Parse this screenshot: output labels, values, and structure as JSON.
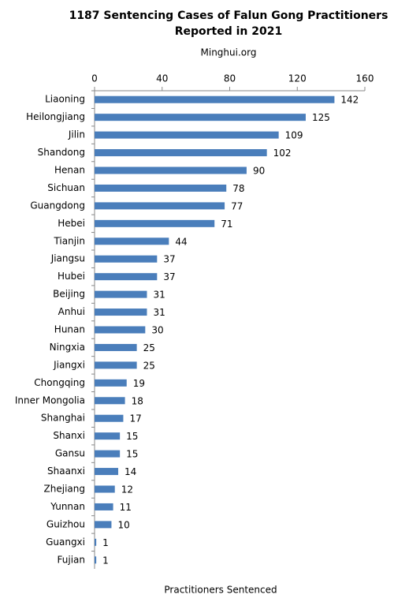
{
  "chart_data": {
    "type": "hbar",
    "title": [
      "1187 Sentencing Cases of Falun Gong Practitioners",
      "Reported in 2021"
    ],
    "subtitle": "Minghui.org",
    "x_label": "Practitioners Sentenced",
    "categories": [
      "Liaoning",
      "Heilongjiang",
      "Jilin",
      "Shandong",
      "Henan",
      "Sichuan",
      "Guangdong",
      "Hebei",
      "Tianjin",
      "Jiangsu",
      "Hubei",
      "Beijing",
      "Anhui",
      "Hunan",
      "Ningxia",
      "Jiangxi",
      "Chongqing",
      "Inner Mongolia",
      "Shanghai",
      "Shanxi",
      "Gansu",
      "Shaanxi",
      "Zhejiang",
      "Yunnan",
      "Guizhou",
      "Guangxi",
      "Fujian"
    ],
    "values": [
      142,
      125,
      109,
      102,
      90,
      78,
      77,
      71,
      44,
      37,
      37,
      31,
      31,
      30,
      25,
      25,
      19,
      18,
      17,
      15,
      15,
      14,
      12,
      11,
      10,
      1,
      1
    ],
    "color": "#4a7ebb",
    "xlim": [
      0,
      160
    ],
    "xticks": [
      0,
      40,
      80,
      120,
      160
    ],
    "grid": false
  }
}
